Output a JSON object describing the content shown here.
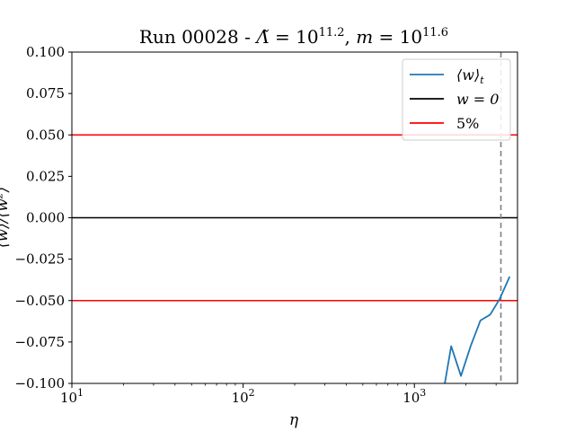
{
  "chart_data": {
    "type": "line",
    "title": "Run 00028 - Λ̃ = 10^11.2, m = 10^11.6",
    "title_parts": {
      "prefix": "Run 00028 - ",
      "lambda_symbol": "Λ̃",
      "lambda_eq": " = 10",
      "lambda_exp": "11.2",
      "sep": ", ",
      "m_symbol": "m",
      "m_eq": " = 10",
      "m_exp": "11.6"
    },
    "xlabel": "η",
    "ylabel": "⟨w⟩/⟨w²⟩",
    "xscale": "log",
    "xlim": [
      10,
      4000
    ],
    "ylim": [
      -0.1,
      0.1
    ],
    "x_ticks": [
      {
        "value": 10,
        "base": "10",
        "exp": "1"
      },
      {
        "value": 100,
        "base": "10",
        "exp": "2"
      },
      {
        "value": 1000,
        "base": "10",
        "exp": "3"
      }
    ],
    "y_ticks": [
      {
        "value": 0.1,
        "label": "0.100"
      },
      {
        "value": 0.075,
        "label": "0.075"
      },
      {
        "value": 0.05,
        "label": "0.050"
      },
      {
        "value": 0.025,
        "label": "0.025"
      },
      {
        "value": 0.0,
        "label": "0.000"
      },
      {
        "value": -0.025,
        "label": "−0.025"
      },
      {
        "value": -0.05,
        "label": "−0.050"
      },
      {
        "value": -0.075,
        "label": "−0.075"
      },
      {
        "value": -0.1,
        "label": "−0.100"
      }
    ],
    "series": [
      {
        "name": "⟨w⟩_t",
        "color": "#1f77b4",
        "x": [
          1480,
          1640,
          1870,
          2130,
          2430,
          2770,
          3150,
          3600
        ],
        "y": [
          -0.1045,
          -0.0775,
          -0.0955,
          -0.0775,
          -0.062,
          -0.0585,
          -0.049,
          -0.0355
        ]
      }
    ],
    "hlines": [
      {
        "name": "w = 0",
        "y": 0.0,
        "color": "#000000"
      },
      {
        "name": "5%",
        "y": 0.05,
        "color": "#ff0000"
      },
      {
        "name": "5%",
        "y": -0.05,
        "color": "#ff0000"
      }
    ],
    "vline": {
      "x": 3200,
      "color": "#808080",
      "style": "dashed"
    },
    "legend": {
      "position": "top-right",
      "entries": [
        {
          "label_main": "⟨w⟩",
          "label_sub": "t",
          "color": "#1f77b4"
        },
        {
          "label_main": "w = 0",
          "label_sub": "",
          "color": "#000000"
        },
        {
          "label_main": "5%",
          "label_sub": "",
          "color": "#ff0000"
        }
      ]
    },
    "grid": false
  }
}
